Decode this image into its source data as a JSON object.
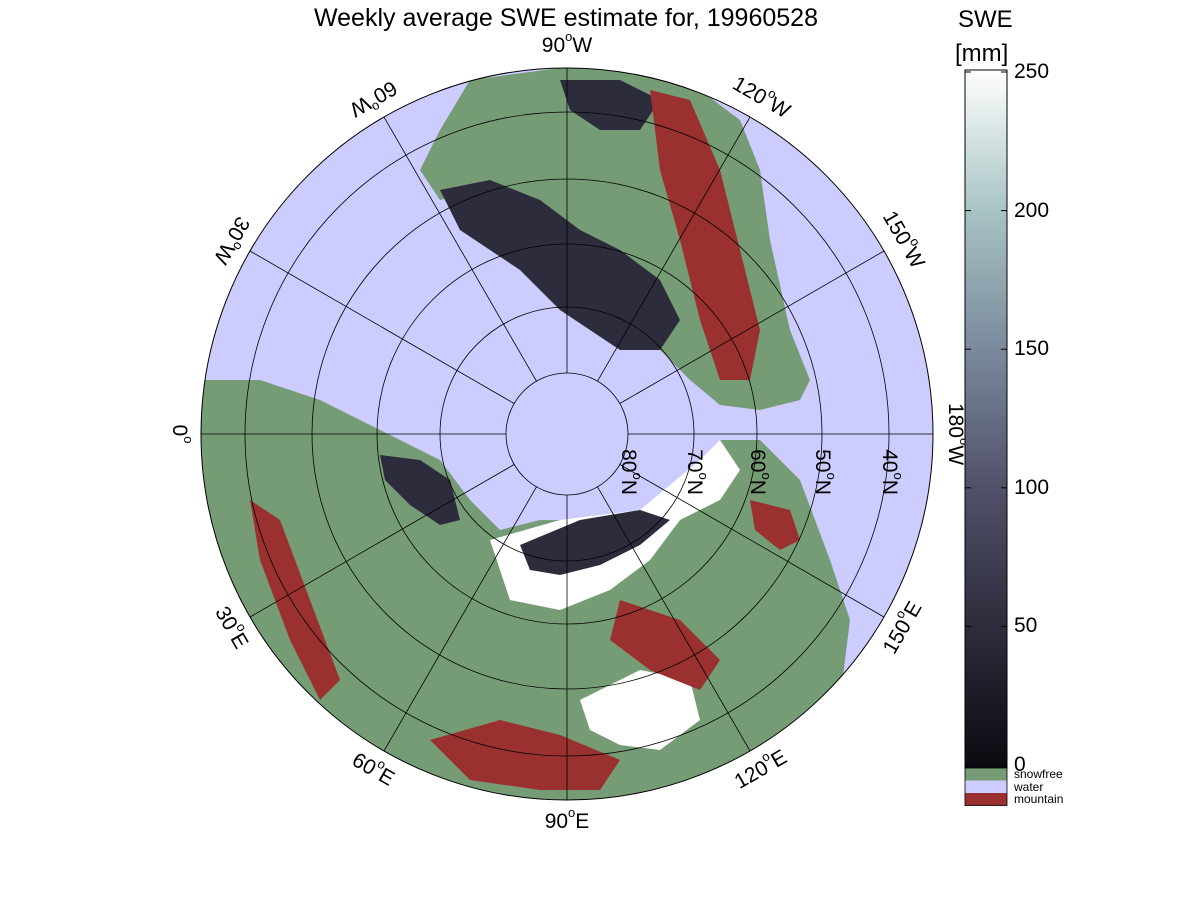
{
  "title": "Weekly average SWE estimate for, 19960528",
  "colorbar": {
    "label": "SWE",
    "unit": "[mm]",
    "min": 0,
    "max": 250,
    "ticks": [
      "0",
      "50",
      "100",
      "150",
      "200",
      "250"
    ],
    "gradient_colors": [
      "#0a0a10",
      "#2c2c3c",
      "#505068",
      "#7a8a9c",
      "#a8c4c4",
      "#ffffff"
    ]
  },
  "legend": [
    {
      "label": "snowfree",
      "color": "#769c76"
    },
    {
      "label": "water",
      "color": "#ccccff"
    },
    {
      "label": "mountain",
      "color": "#9b3030"
    }
  ],
  "map": {
    "projection": "north polar stereographic",
    "ocean_color": "#ccccff",
    "land_color": "#769c76",
    "snow_color": "#ffffff",
    "swe_color": "#2c2c3c",
    "mountain_color": "#9b3030",
    "longitude_labels": [
      {
        "deg": "90",
        "dir": "W"
      },
      {
        "deg": "120",
        "dir": "W"
      },
      {
        "deg": "150",
        "dir": "W"
      },
      {
        "deg": "180",
        "dir": "W"
      },
      {
        "deg": "150",
        "dir": "E"
      },
      {
        "deg": "120",
        "dir": "E"
      },
      {
        "deg": "90",
        "dir": "E"
      },
      {
        "deg": "60",
        "dir": "E"
      },
      {
        "deg": "30",
        "dir": "E"
      },
      {
        "deg": "0",
        "dir": ""
      },
      {
        "deg": "30",
        "dir": "W"
      },
      {
        "deg": "60",
        "dir": "W"
      }
    ],
    "latitude_labels": [
      {
        "deg": "80",
        "dir": "N"
      },
      {
        "deg": "70",
        "dir": "N"
      },
      {
        "deg": "60",
        "dir": "N"
      },
      {
        "deg": "50",
        "dir": "N"
      },
      {
        "deg": "40",
        "dir": "N"
      }
    ]
  }
}
